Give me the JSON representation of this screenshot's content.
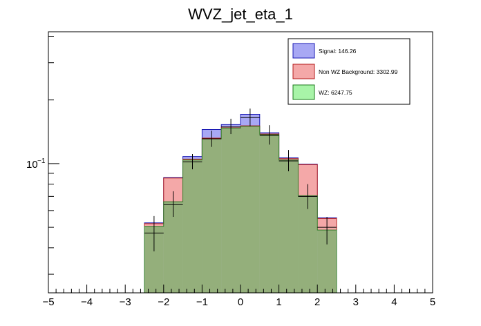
{
  "chart_data": {
    "type": "bar",
    "title": "WVZ_jet_eta_1",
    "xlabel": "",
    "ylabel": "",
    "xlim": [
      -5,
      5
    ],
    "y_scale": "log",
    "ylim": [
      0.0245,
      0.42
    ],
    "x_ticks": [
      "−5",
      "−4",
      "−3",
      "−2",
      "−1",
      "0",
      "1",
      "2",
      "3",
      "4",
      "5"
    ],
    "y_tick_label": {
      "base": "10",
      "exponent": "−1"
    },
    "bin_edges": [
      -2.5,
      -2.0,
      -1.5,
      -1.0,
      -0.5,
      0.0,
      0.5,
      1.0,
      1.5,
      2.0,
      2.5
    ],
    "series": [
      {
        "name": "Signal: 146.26",
        "color": "#a8a8f4",
        "values": [
          0.0525,
          0.086,
          0.108,
          0.145,
          0.153,
          0.171,
          0.14,
          0.1065,
          0.0995,
          0.0555
        ]
      },
      {
        "name": "Non WZ Background: 3302.99",
        "color": "#f4a8a8",
        "values": [
          0.052,
          0.0855,
          0.105,
          0.132,
          0.149,
          0.151,
          0.138,
          0.1055,
          0.099,
          0.055
        ]
      },
      {
        "name": "WZ: 6247.75",
        "color": "#a8f4a8",
        "values": [
          0.0505,
          0.066,
          0.104,
          0.131,
          0.147,
          0.15,
          0.137,
          0.104,
          0.0705,
          0.0485
        ]
      }
    ],
    "error_bars": {
      "centers": [
        -2.25,
        -1.75,
        -1.25,
        -0.75,
        -0.25,
        0.25,
        0.75,
        1.25,
        1.75,
        2.25
      ],
      "values": [
        0.047,
        0.064,
        0.102,
        0.131,
        0.149,
        0.165,
        0.136,
        0.103,
        0.07,
        0.05
      ],
      "low": [
        0.0385,
        0.056,
        0.094,
        0.12,
        0.138,
        0.15,
        0.123,
        0.092,
        0.061,
        0.0415
      ],
      "high": [
        0.0565,
        0.074,
        0.111,
        0.143,
        0.163,
        0.182,
        0.152,
        0.116,
        0.08,
        0.056
      ]
    },
    "legend_position": "top-right",
    "grid": false
  }
}
